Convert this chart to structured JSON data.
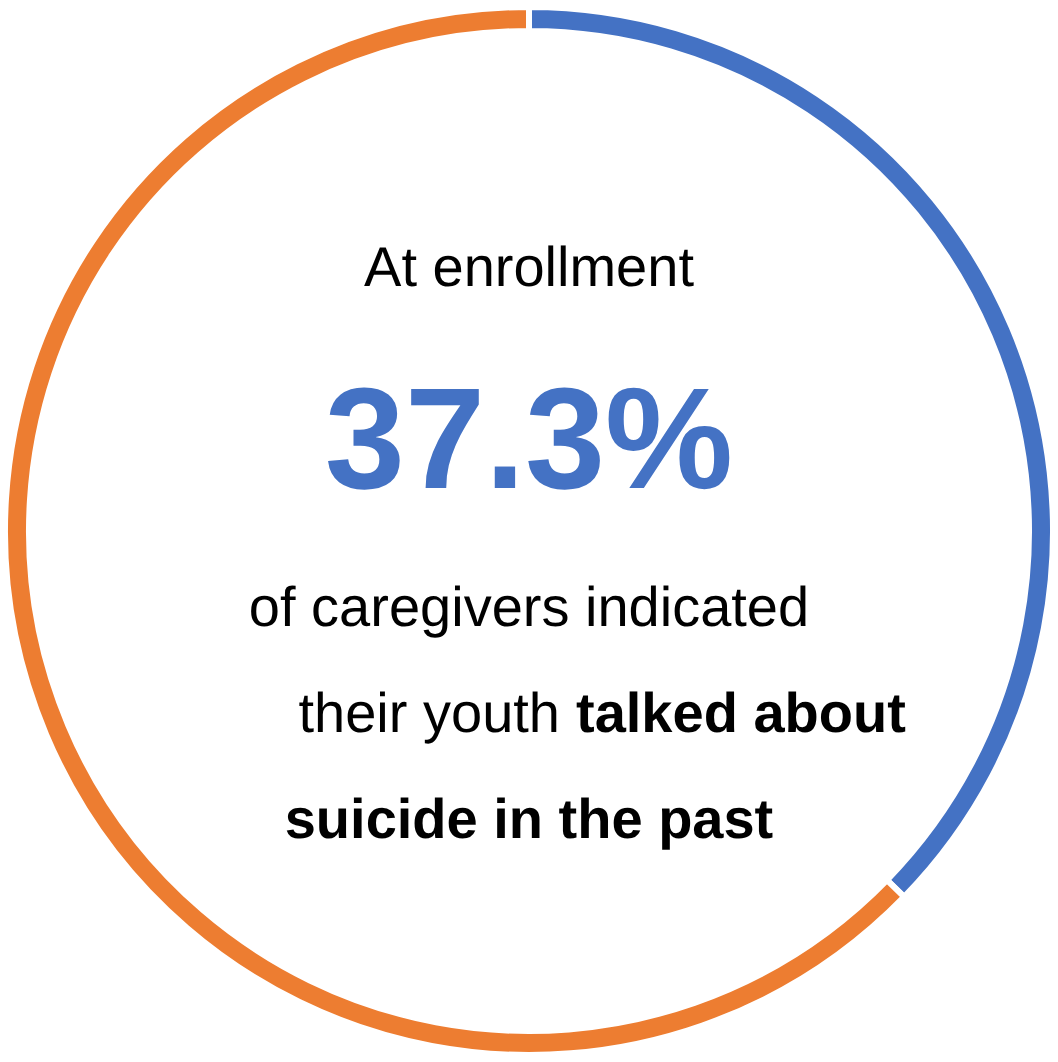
{
  "chart_data": {
    "type": "donut",
    "categories": [
      null,
      null
    ],
    "values": [
      37.3,
      62.7
    ],
    "colors": [
      "#4472c4",
      "#ed7d31"
    ],
    "value_labels": [
      "37.3%",
      null
    ],
    "annotations": [
      "At enrollment",
      "of caregivers indicated",
      "their youth",
      "talked about",
      "suicide in the past"
    ]
  }
}
